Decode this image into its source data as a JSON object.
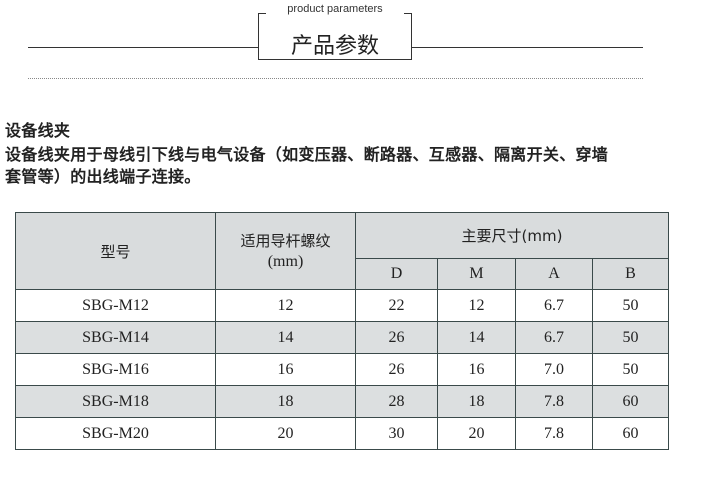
{
  "header": {
    "subtitle": "product parameters",
    "title": "产品参数"
  },
  "section": {
    "heading": "设备线夹",
    "desc_line1": "设备线夹用于母线引下线与电气设备（如变压器、断路器、互感器、隔离开关、穿墙",
    "desc_line2": "套管等）的出线端子连接。"
  },
  "table": {
    "col_model": "型号",
    "col_thread": "适用导杆螺纹",
    "col_thread_unit": "(mm)",
    "col_dims": "主要尺寸(mm)",
    "sub_cols": [
      "D",
      "M",
      "A",
      "B"
    ],
    "rows": [
      [
        "SBG-M12",
        "12",
        "22",
        "12",
        "6.7",
        "50"
      ],
      [
        "SBG-M14",
        "14",
        "26",
        "14",
        "6.7",
        "50"
      ],
      [
        "SBG-M16",
        "16",
        "26",
        "16",
        "7.0",
        "50"
      ],
      [
        "SBG-M18",
        "18",
        "28",
        "18",
        "7.8",
        "60"
      ],
      [
        "SBG-M20",
        "20",
        "30",
        "20",
        "7.8",
        "60"
      ]
    ]
  }
}
